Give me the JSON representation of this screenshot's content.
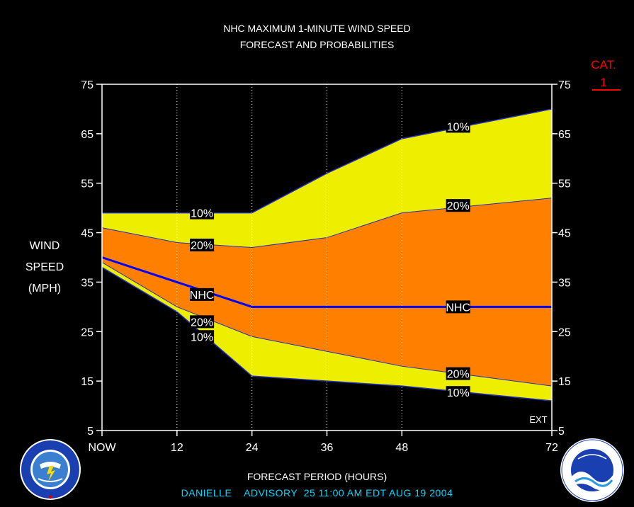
{
  "header": {
    "title_line1": "NHC MAXIMUM 1-MINUTE WIND SPEED",
    "title_line2": "FORECAST AND PROBABILITIES"
  },
  "y_axis_label": {
    "line1": "WIND",
    "line2": "SPEED",
    "line3": "(MPH)"
  },
  "category": {
    "label": "CAT.",
    "value": "1"
  },
  "x_axis_title": "FORECAST PERIOD (HOURS)",
  "advisory": "DANIELLE    ADVISORY  25 11:00 AM EDT AUG 19 2004",
  "ext_label": "EXT",
  "colors": {
    "background": "#000000",
    "outer_band": "#eeee00",
    "inner_band": "#ff8000",
    "nhc_line": "#0000ff",
    "advisory_text": "#00d8ff",
    "category_text": "#ff0000"
  },
  "chart_data": {
    "type": "area",
    "title": "NHC MAXIMUM 1-MINUTE WIND SPEED FORECAST AND PROBABILITIES",
    "xlabel": "FORECAST PERIOD (HOURS)",
    "ylabel": "WIND SPEED (MPH)",
    "xlim": [
      0,
      72
    ],
    "ylim": [
      5,
      75
    ],
    "x_ticks": [
      0,
      12,
      24,
      36,
      48,
      72
    ],
    "x_tick_labels": [
      "NOW",
      "12",
      "24",
      "36",
      "48",
      "72"
    ],
    "y_ticks": [
      5,
      15,
      25,
      35,
      45,
      55,
      65,
      75
    ],
    "x": [
      0,
      12,
      24,
      36,
      48,
      60,
      72
    ],
    "series": [
      {
        "name": "10%",
        "band": "upper",
        "values": [
          49,
          49,
          49,
          57,
          64,
          67,
          70
        ]
      },
      {
        "name": "20%",
        "band": "upper",
        "values": [
          46,
          43,
          42,
          44,
          49,
          50.5,
          52
        ]
      },
      {
        "name": "NHC",
        "values": [
          40,
          35,
          30,
          30,
          30,
          30,
          30
        ]
      },
      {
        "name": "20%",
        "band": "lower",
        "values": [
          39,
          30,
          24,
          21,
          18,
          16,
          14
        ]
      },
      {
        "name": "10%",
        "band": "lower",
        "values": [
          38,
          29,
          16,
          15,
          14,
          12.5,
          11
        ]
      }
    ],
    "annotations": [
      {
        "text": "10%",
        "x": 16,
        "y": 49
      },
      {
        "text": "20%",
        "x": 16,
        "y": 42.5
      },
      {
        "text": "NHC",
        "x": 16,
        "y": 32.5
      },
      {
        "text": "20%",
        "x": 16,
        "y": 27
      },
      {
        "text": "10%",
        "x": 16,
        "y": 24
      },
      {
        "text": "10%",
        "x": 57,
        "y": 66.5
      },
      {
        "text": "20%",
        "x": 57,
        "y": 50.5
      },
      {
        "text": "NHC",
        "x": 57,
        "y": 30
      },
      {
        "text": "20%",
        "x": 57,
        "y": 16.5
      },
      {
        "text": "10%",
        "x": 57,
        "y": 12.7
      }
    ]
  }
}
